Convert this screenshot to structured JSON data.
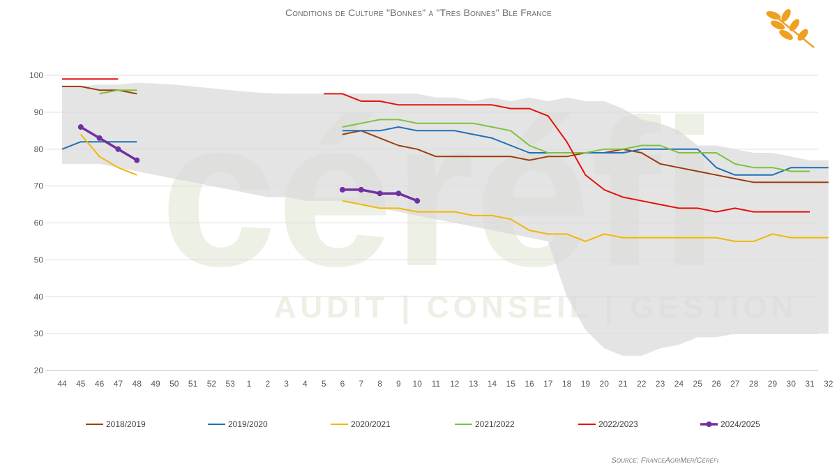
{
  "chart_data": {
    "type": "line",
    "title": "Conditions de Culture \"Bonnes\" à \"Très Bonnes\" Blé France",
    "source": "Source: FranceAgriMer/Céréfi",
    "watermark": {
      "brand": "céréfi",
      "tagline": "AUDIT | CONSEIL | GESTION"
    },
    "x": [
      "44",
      "45",
      "46",
      "47",
      "48",
      "49",
      "50",
      "51",
      "52",
      "53",
      "1",
      "2",
      "3",
      "4",
      "5",
      "6",
      "7",
      "8",
      "9",
      "10",
      "11",
      "12",
      "13",
      "14",
      "15",
      "16",
      "17",
      "18",
      "19",
      "20",
      "21",
      "22",
      "23",
      "24",
      "25",
      "26",
      "27",
      "28",
      "29",
      "30",
      "31",
      "32"
    ],
    "ylim": [
      20,
      100
    ],
    "yticks": [
      20,
      30,
      40,
      50,
      60,
      70,
      80,
      90,
      100
    ],
    "grid": true,
    "legend_position": "bottom",
    "range_band": {
      "upper": [
        97,
        97,
        97.5,
        97.5,
        98,
        97.8,
        97.5,
        97,
        96.5,
        96,
        95.5,
        95.2,
        95,
        95,
        95,
        95,
        95,
        95,
        95,
        95,
        94,
        94,
        93,
        94,
        93,
        94,
        93,
        94,
        93,
        93,
        91,
        88,
        87,
        85,
        81,
        81,
        80,
        79,
        79,
        78,
        77,
        77
      ],
      "lower": [
        76,
        76,
        76,
        75,
        74,
        73,
        72,
        71,
        70,
        69,
        68,
        67,
        67,
        66,
        66,
        66,
        65,
        64,
        63,
        62,
        61,
        60,
        59,
        58,
        57,
        56,
        55,
        40,
        31,
        26,
        24,
        24,
        26,
        27,
        29,
        29,
        30,
        30,
        30,
        30,
        30,
        30
      ]
    },
    "series": [
      {
        "name": "2018/2019",
        "color": "#9c3d0b",
        "markers": false,
        "values": [
          97,
          97,
          96,
          96,
          95,
          null,
          null,
          null,
          null,
          null,
          null,
          null,
          null,
          null,
          null,
          84,
          85,
          83,
          81,
          80,
          78,
          78,
          78,
          78,
          78,
          77,
          78,
          78,
          79,
          79,
          80,
          79,
          76,
          75,
          74,
          73,
          72,
          71,
          71,
          71,
          71,
          71
        ]
      },
      {
        "name": "2019/2020",
        "color": "#1f6fb8",
        "markers": false,
        "values": [
          80,
          82,
          82,
          82,
          82,
          null,
          null,
          null,
          null,
          null,
          null,
          null,
          null,
          null,
          null,
          85,
          85,
          85,
          86,
          85,
          85,
          85,
          84,
          83,
          81,
          79,
          79,
          79,
          79,
          79,
          79,
          80,
          80,
          80,
          80,
          75,
          73,
          73,
          73,
          75,
          75,
          75
        ]
      },
      {
        "name": "2020/2021",
        "color": "#f2b705",
        "markers": false,
        "values": [
          null,
          84,
          78,
          75,
          73,
          null,
          null,
          null,
          null,
          null,
          null,
          null,
          null,
          null,
          null,
          66,
          65,
          64,
          64,
          63,
          63,
          63,
          62,
          62,
          61,
          58,
          57,
          57,
          55,
          57,
          56,
          56,
          56,
          56,
          56,
          56,
          55,
          55,
          57,
          56,
          56,
          56
        ]
      },
      {
        "name": "2021/2022",
        "color": "#7dc242",
        "markers": false,
        "values": [
          null,
          null,
          95,
          96,
          96,
          null,
          null,
          null,
          null,
          null,
          null,
          null,
          null,
          null,
          null,
          86,
          87,
          88,
          88,
          87,
          87,
          87,
          87,
          86,
          85,
          81,
          79,
          79,
          79,
          80,
          80,
          81,
          81,
          79,
          79,
          79,
          76,
          75,
          75,
          74,
          74,
          null
        ]
      },
      {
        "name": "2022/2023",
        "color": "#e3120b",
        "markers": false,
        "values": [
          99,
          99,
          99,
          99,
          null,
          null,
          null,
          null,
          null,
          null,
          null,
          null,
          null,
          null,
          95,
          95,
          93,
          93,
          92,
          92,
          92,
          92,
          92,
          92,
          91,
          91,
          89,
          82,
          73,
          69,
          67,
          66,
          65,
          64,
          64,
          63,
          64,
          63,
          63,
          63,
          63,
          null
        ]
      },
      {
        "name": "2024/2025",
        "color": "#7030a0",
        "markers": true,
        "values": [
          null,
          86,
          83,
          80,
          77,
          null,
          null,
          null,
          null,
          null,
          null,
          null,
          null,
          null,
          null,
          69,
          69,
          68,
          68,
          66,
          null,
          null,
          null,
          null,
          null,
          null,
          null,
          null,
          null,
          null,
          null,
          null,
          null,
          null,
          null,
          null,
          null,
          null,
          null,
          null,
          null,
          null
        ]
      }
    ]
  }
}
